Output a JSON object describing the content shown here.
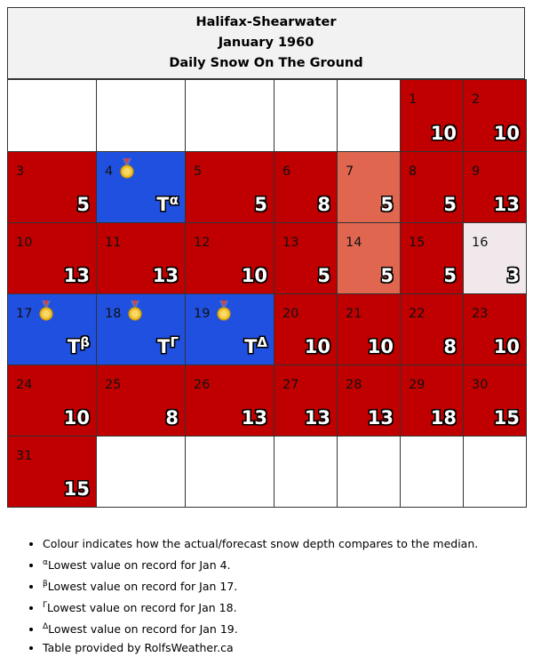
{
  "title": {
    "station": "Halifax-Shearwater",
    "period": "January 1960",
    "subtitle": "Daily Snow On The Ground"
  },
  "colors": {
    "above_median": "#c00000",
    "slightly_above": "#e06650",
    "record_low": "#2050e0",
    "below_median": "#f0e8ea"
  },
  "weeks": [
    [
      {
        "blank": true
      },
      {
        "blank": true
      },
      {
        "blank": true
      },
      {
        "blank": true
      },
      {
        "blank": true
      },
      {
        "day": "1",
        "value": "10",
        "color": "red"
      },
      {
        "day": "2",
        "value": "10",
        "color": "red"
      }
    ],
    [
      {
        "day": "3",
        "value": "5",
        "color": "red"
      },
      {
        "day": "4",
        "value": "T",
        "sup": "α",
        "color": "blue",
        "medal": true
      },
      {
        "day": "5",
        "value": "5",
        "color": "red"
      },
      {
        "day": "6",
        "value": "8",
        "color": "red"
      },
      {
        "day": "7",
        "value": "5",
        "color": "salmon"
      },
      {
        "day": "8",
        "value": "5",
        "color": "red"
      },
      {
        "day": "9",
        "value": "13",
        "color": "red"
      }
    ],
    [
      {
        "day": "10",
        "value": "13",
        "color": "red"
      },
      {
        "day": "11",
        "value": "13",
        "color": "red"
      },
      {
        "day": "12",
        "value": "10",
        "color": "red"
      },
      {
        "day": "13",
        "value": "5",
        "color": "red"
      },
      {
        "day": "14",
        "value": "5",
        "color": "salmon"
      },
      {
        "day": "15",
        "value": "5",
        "color": "red"
      },
      {
        "day": "16",
        "value": "3",
        "color": "pale"
      }
    ],
    [
      {
        "day": "17",
        "value": "T",
        "sup": "β",
        "color": "blue",
        "medal": true
      },
      {
        "day": "18",
        "value": "T",
        "sup": "Γ",
        "color": "blue",
        "medal": true
      },
      {
        "day": "19",
        "value": "T",
        "sup": "Δ",
        "color": "blue",
        "medal": true
      },
      {
        "day": "20",
        "value": "10",
        "color": "red"
      },
      {
        "day": "21",
        "value": "10",
        "color": "red"
      },
      {
        "day": "22",
        "value": "8",
        "color": "red"
      },
      {
        "day": "23",
        "value": "10",
        "color": "red"
      }
    ],
    [
      {
        "day": "24",
        "value": "10",
        "color": "red"
      },
      {
        "day": "25",
        "value": "8",
        "color": "red"
      },
      {
        "day": "26",
        "value": "13",
        "color": "red"
      },
      {
        "day": "27",
        "value": "13",
        "color": "red"
      },
      {
        "day": "28",
        "value": "13",
        "color": "red"
      },
      {
        "day": "29",
        "value": "18",
        "color": "red"
      },
      {
        "day": "30",
        "value": "15",
        "color": "red"
      }
    ],
    [
      {
        "day": "31",
        "value": "15",
        "color": "red"
      },
      {
        "blank": true
      },
      {
        "blank": true
      },
      {
        "blank": true
      },
      {
        "blank": true
      },
      {
        "blank": true
      },
      {
        "blank": true
      }
    ]
  ],
  "notes": [
    {
      "sup": "",
      "text": "Colour indicates how the actual/forecast snow depth compares to the median."
    },
    {
      "sup": "α",
      "text": "Lowest value on record for Jan 4."
    },
    {
      "sup": "β",
      "text": "Lowest value on record for Jan 17."
    },
    {
      "sup": "Γ",
      "text": "Lowest value on record for Jan 18."
    },
    {
      "sup": "Δ",
      "text": "Lowest value on record for Jan 19."
    },
    {
      "sup": "",
      "text": "Table provided by RolfsWeather.ca"
    }
  ]
}
